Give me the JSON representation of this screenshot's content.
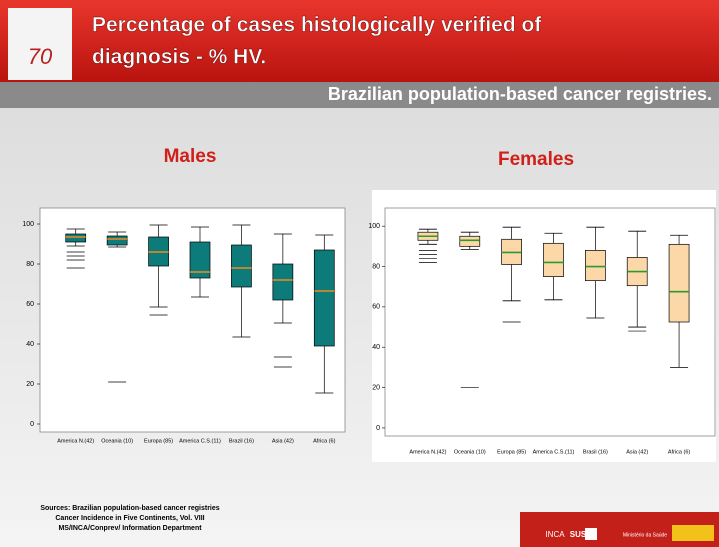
{
  "slide": {
    "title_lines": [
      "Percentage of cases histologically verified of",
      "diagnosis - % HV."
    ],
    "subtitle": "Brazilian population-based cancer registries.",
    "sources": [
      "Sources: Brazilian population-based cancer registries",
      "Cancer Incidence in Five Continents, Vol. VIII",
      "MS/INCA/Conprev/ Information Department"
    ],
    "footer": [
      "INCA",
      "SUS",
      "Ministério da Saúde"
    ]
  },
  "chart_data": [
    {
      "type": "box",
      "title": "Males",
      "categories": [
        "America N.(42)",
        "Oceania (10)",
        "Europa (85)",
        "America C.S.(11)",
        "Brazil (16)",
        "Asia (42)",
        "Africa (6)"
      ],
      "whisker_high": [
        97.5,
        96,
        99.5,
        98.5,
        99.5,
        95,
        94.5
      ],
      "q3": [
        95,
        94,
        93.5,
        91,
        89.5,
        80,
        87
      ],
      "median": [
        93.5,
        92.5,
        86,
        76,
        78,
        72,
        66.5
      ],
      "q1": [
        91,
        89.5,
        79,
        73,
        68.5,
        62,
        39
      ],
      "whisker_low": [
        89,
        88.5,
        58.5,
        63.5,
        43.5,
        50.5,
        15.5
      ],
      "outliers": [
        [
          86,
          84,
          82,
          78
        ],
        [
          21
        ],
        [
          54.5
        ],
        [],
        [],
        [
          33.5,
          28.5
        ],
        []
      ],
      "box_color": "#0e7b7b",
      "median_color": "#f08a1c",
      "ylim": [
        -4,
        108
      ],
      "yticks": [
        0,
        20,
        40,
        60,
        80,
        100
      ]
    },
    {
      "type": "box",
      "title": "Females",
      "categories": [
        "America N.(42)",
        "Oceania (10)",
        "Europa (85)",
        "America C.S.(11)",
        "Brasil (16)",
        "Asia (42)",
        "Africa (6)"
      ],
      "whisker_high": [
        98.5,
        97,
        99.5,
        96.5,
        99.5,
        97.5,
        95.5
      ],
      "q3": [
        97,
        95,
        93.5,
        91.5,
        88,
        84.5,
        91
      ],
      "median": [
        95,
        93,
        87,
        82,
        80,
        77.5,
        67.5
      ],
      "q1": [
        93,
        90,
        81,
        75,
        73,
        70.5,
        52.5
      ],
      "whisker_low": [
        91,
        88.5,
        63,
        63.5,
        54.5,
        50,
        30
      ],
      "outliers": [
        [
          88,
          86,
          84,
          82
        ],
        [
          20
        ],
        [
          52.5
        ],
        [],
        [],
        [
          48
        ],
        []
      ],
      "box_color": "#fcd8a8",
      "median_color": "#2e9a2e",
      "ylim": [
        -4,
        109
      ],
      "yticks": [
        0,
        20,
        40,
        60,
        80,
        100
      ]
    }
  ]
}
